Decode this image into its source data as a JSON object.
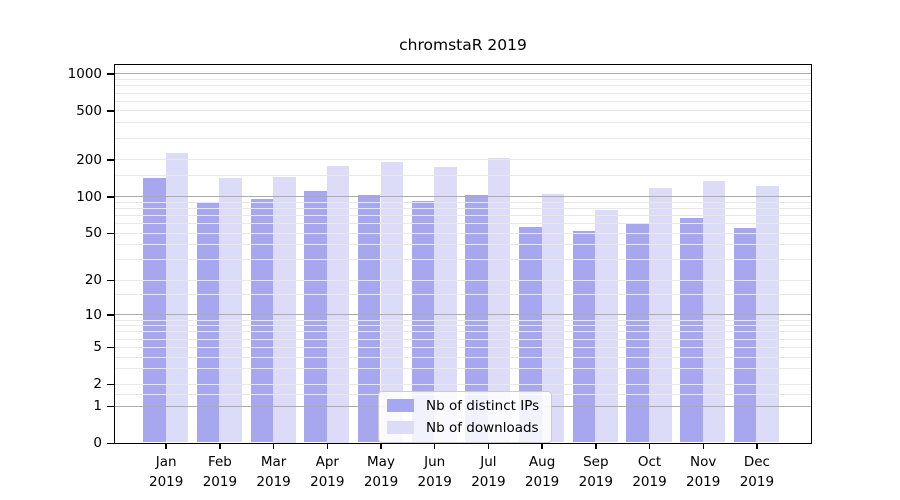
{
  "title": "chromstaR 2019",
  "legend": {
    "items": [
      {
        "label": "Nb of distinct IPs",
        "color": "#a7a7f0"
      },
      {
        "label": "Nb of downloads",
        "color": "#dcdcf9"
      }
    ]
  },
  "chart_data": {
    "type": "bar",
    "title": "chromstaR 2019",
    "xlabel": "",
    "ylabel": "",
    "scale": "log10(1+x)",
    "ylim": [
      0,
      1170
    ],
    "grid": "on",
    "legend_position": "bottom-center",
    "months": [
      "Jan",
      "Feb",
      "Mar",
      "Apr",
      "May",
      "Jun",
      "Jul",
      "Aug",
      "Sep",
      "Oct",
      "Nov",
      "Dec"
    ],
    "year_label": "2019",
    "categories": [
      "Jan 2019",
      "Feb 2019",
      "Mar 2019",
      "Apr 2019",
      "May 2019",
      "Jun 2019",
      "Jul 2019",
      "Aug 2019",
      "Sep 2019",
      "Oct 2019",
      "Nov 2019",
      "Dec 2019"
    ],
    "series": [
      {
        "name": "Nb of distinct IPs",
        "color": "#a7a7f0",
        "values": [
          141,
          87,
          95,
          109,
          101,
          91,
          101,
          56,
          51,
          60,
          66,
          54
        ]
      },
      {
        "name": "Nb of downloads",
        "color": "#dcdcf9",
        "values": [
          225,
          141,
          143,
          176,
          191,
          172,
          205,
          104,
          77,
          117,
          133,
          121
        ]
      }
    ],
    "yticks": [
      1000,
      500,
      200,
      100,
      50,
      20,
      10,
      5,
      2,
      1,
      0
    ],
    "major_gridlines": [
      1,
      10,
      100,
      1000
    ],
    "minor_gridlines": [
      1.5,
      2,
      3,
      4,
      5,
      6,
      7,
      8,
      9,
      15,
      20,
      30,
      40,
      50,
      60,
      70,
      80,
      90,
      150,
      200,
      300,
      400,
      500,
      600,
      700,
      800,
      900
    ]
  },
  "colors": {
    "bar_ips": "#a7a7f0",
    "bar_downloads": "#dcdcf9",
    "grid_minor": "#e8e8e8",
    "grid_major": "#ababab",
    "axis": "#000000",
    "background": "#ffffff"
  }
}
